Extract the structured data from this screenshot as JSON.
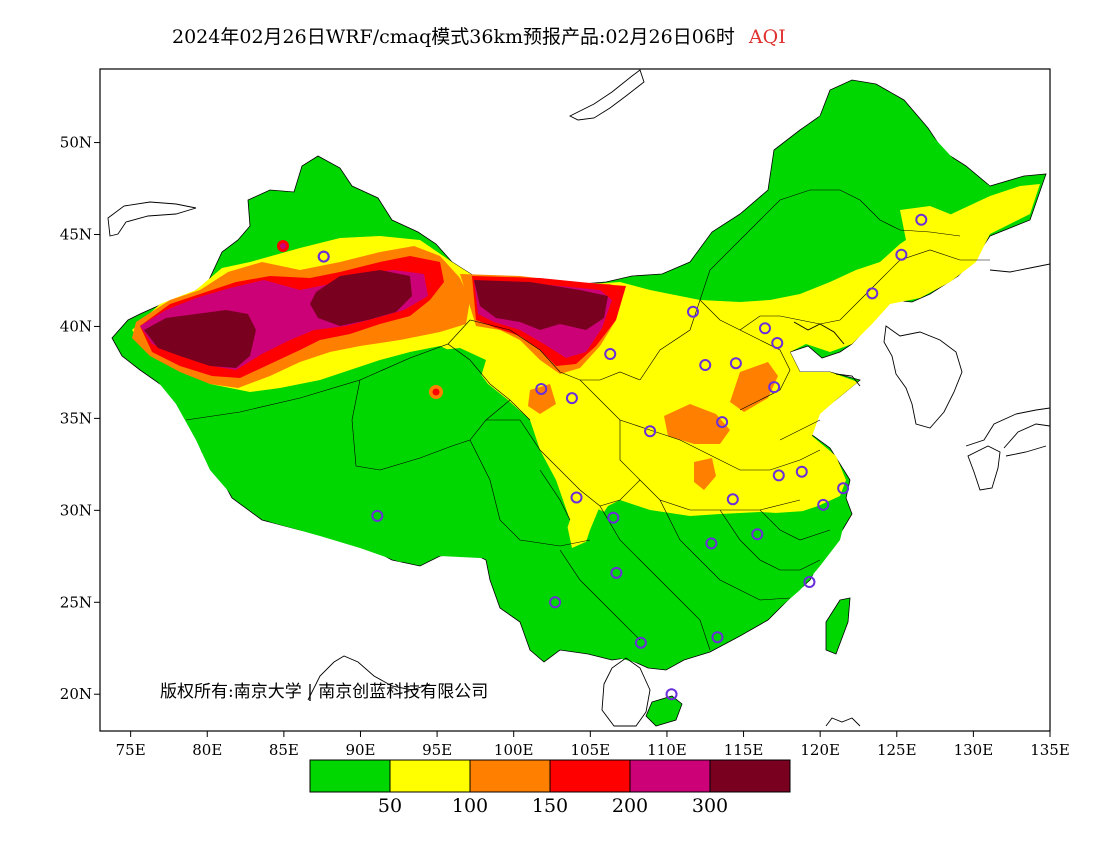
{
  "title": {
    "main": "2024年02月26日WRF/cmaq模式36km预报产品:02月26日06时",
    "variable": "AQI"
  },
  "copyright": "版权所有:南京大学 | 南京创蓝科技有限公司",
  "axes": {
    "x_ticks": [
      "75E",
      "80E",
      "85E",
      "90E",
      "95E",
      "100E",
      "105E",
      "110E",
      "115E",
      "120E",
      "125E",
      "130E",
      "135E"
    ],
    "y_ticks": [
      "50N",
      "45N",
      "40N",
      "35N",
      "30N",
      "25N",
      "20N"
    ],
    "lon_range": [
      73,
      135
    ],
    "lat_range": [
      18,
      54
    ]
  },
  "legend": {
    "colors": [
      "#00d600",
      "#ffff00",
      "#ff8000",
      "#ff0000",
      "#cc0077",
      "#7a0020"
    ],
    "labels": [
      "50",
      "100",
      "150",
      "200",
      "300"
    ]
  },
  "stations": [
    [
      87.6,
      43.8
    ],
    [
      101.8,
      36.6
    ],
    [
      103.8,
      36.1
    ],
    [
      106.3,
      38.5
    ],
    [
      111.7,
      40.8
    ],
    [
      112.5,
      37.9
    ],
    [
      114.5,
      38.0
    ],
    [
      116.4,
      39.9
    ],
    [
      117.2,
      39.1
    ],
    [
      117.0,
      36.7
    ],
    [
      113.6,
      34.8
    ],
    [
      108.9,
      34.3
    ],
    [
      104.1,
      30.7
    ],
    [
      106.5,
      29.6
    ],
    [
      106.7,
      26.6
    ],
    [
      102.7,
      25.0
    ],
    [
      108.3,
      22.8
    ],
    [
      110.3,
      20.0
    ],
    [
      113.3,
      23.1
    ],
    [
      112.9,
      28.2
    ],
    [
      115.9,
      28.7
    ],
    [
      117.3,
      31.9
    ],
    [
      118.8,
      32.1
    ],
    [
      121.5,
      31.2
    ],
    [
      120.2,
      30.3
    ],
    [
      119.3,
      26.1
    ],
    [
      114.3,
      30.6
    ],
    [
      123.4,
      41.8
    ],
    [
      125.3,
      43.9
    ],
    [
      126.6,
      45.8
    ],
    [
      91.1,
      29.7
    ],
    [
      87.6,
      43.8
    ]
  ]
}
